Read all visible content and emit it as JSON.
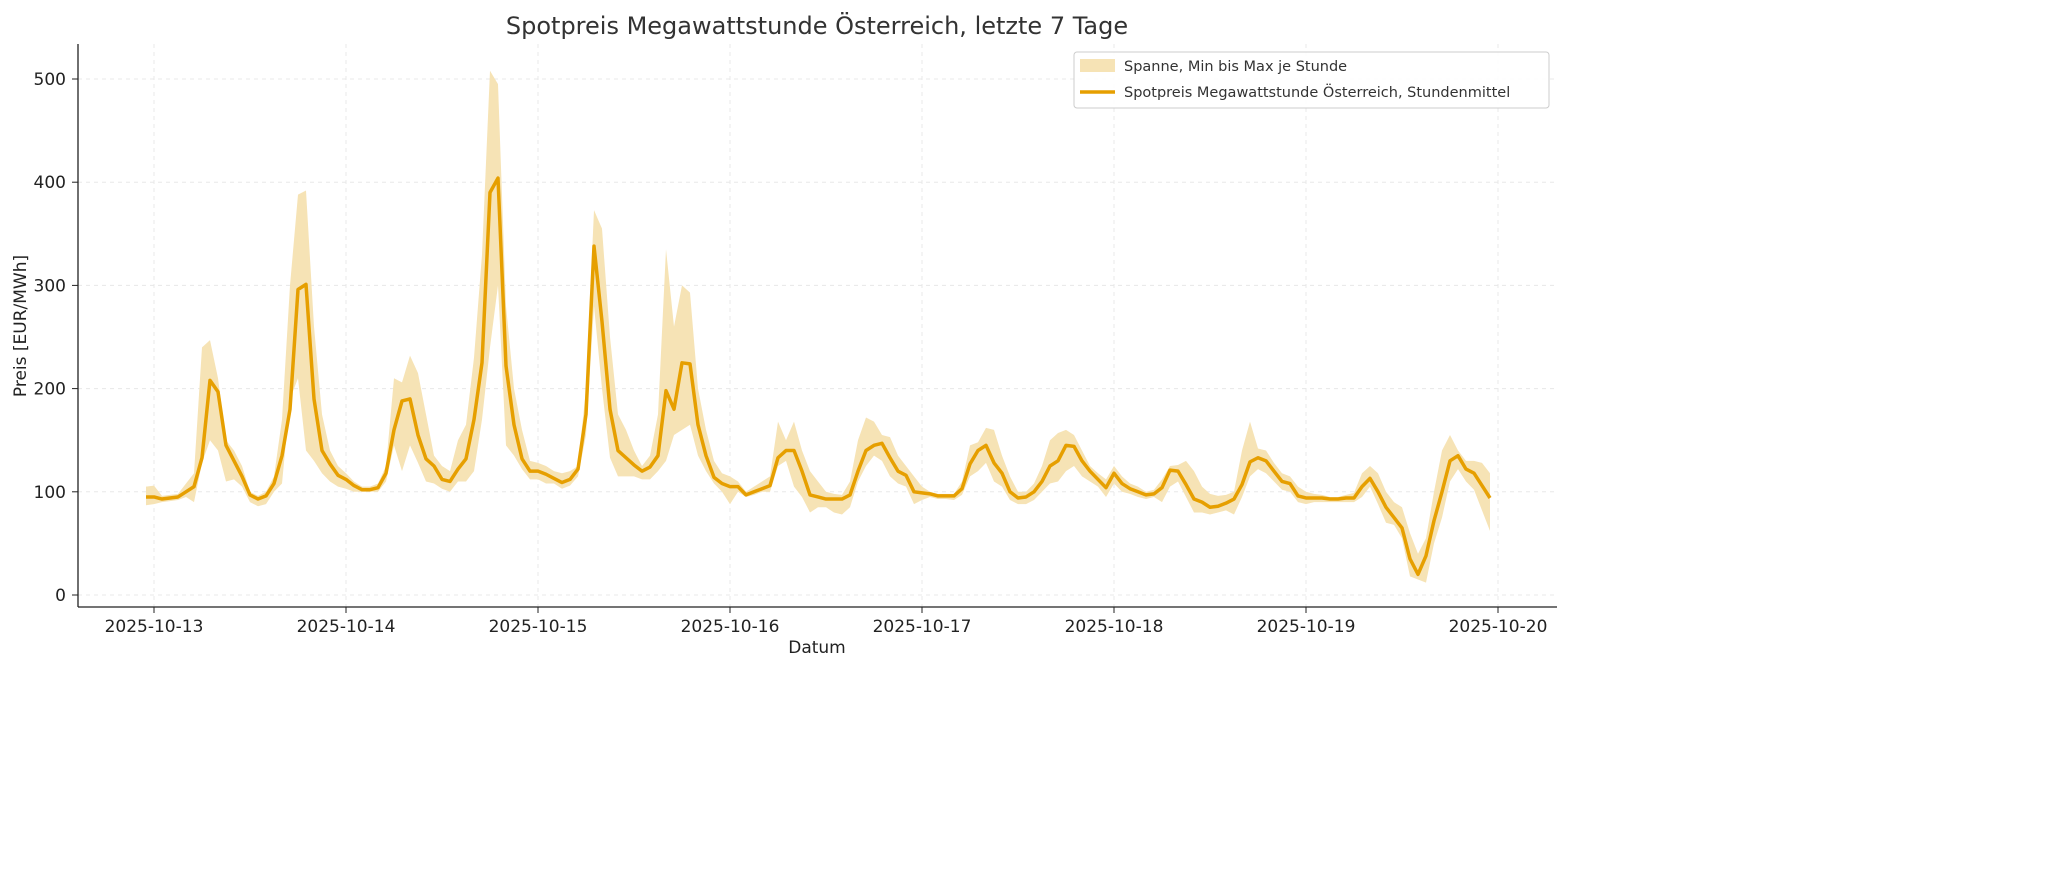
{
  "chart_data": {
    "type": "line",
    "title": "Spotpreis Megawattstunde Österreich, letzte 7 Tage",
    "xlabel": "Datum",
    "ylabel": "Preis [EUR/MWh]",
    "ylim": [
      -12,
      532
    ],
    "yticks": [
      0,
      100,
      200,
      300,
      400,
      500
    ],
    "xticks": [
      "2025-10-13",
      "2025-10-14",
      "2025-10-15",
      "2025-10-16",
      "2025-10-17",
      "2025-10-18",
      "2025-10-19",
      "2025-10-20"
    ],
    "x_start": "2025-10-12 23:00",
    "x_interval": "1h",
    "grid": true,
    "legend_position": "top-right",
    "colors": {
      "line": "#e69f00",
      "band": "#f6e3b5"
    },
    "series": [
      {
        "name": "Spotpreis Megawattstunde Österreich, Stundenmittel",
        "values": [
          95,
          95,
          93,
          94,
          95,
          100,
          105,
          133,
          208,
          197,
          145,
          130,
          115,
          97,
          93,
          96,
          108,
          135,
          180,
          296,
          301,
          190,
          140,
          127,
          116,
          112,
          106,
          102,
          102,
          104,
          118,
          160,
          188,
          190,
          155,
          132,
          125,
          112,
          110,
          122,
          132,
          170,
          225,
          390,
          404,
          222,
          165,
          132,
          120,
          120,
          117,
          113,
          109,
          112,
          122,
          175,
          338,
          265,
          180,
          140,
          133,
          126,
          120,
          124,
          135,
          198,
          180,
          225,
          224,
          165,
          135,
          114,
          108,
          105,
          105,
          97,
          100,
          103,
          106,
          133,
          140,
          140,
          120,
          97,
          95,
          93,
          93,
          93,
          97,
          120,
          140,
          145,
          147,
          133,
          120,
          116,
          100,
          99,
          98,
          96,
          96,
          96,
          103,
          127,
          140,
          145,
          128,
          118,
          100,
          94,
          95,
          100,
          110,
          125,
          130,
          145,
          144,
          130,
          120,
          112,
          104,
          118,
          108,
          103,
          100,
          97,
          98,
          104,
          121,
          120,
          107,
          93,
          90,
          85,
          86,
          89,
          93,
          107,
          129,
          133,
          130,
          120,
          110,
          108,
          96,
          94,
          94,
          94,
          93,
          93,
          94,
          94,
          105,
          113,
          100,
          85,
          75,
          65,
          35,
          20,
          38,
          72,
          100,
          130,
          135,
          122,
          118,
          106,
          94
        ]
      }
    ],
    "band": {
      "name": "Spanne, Min bis Max je Stunde",
      "max": [
        105,
        106,
        96,
        97,
        98,
        108,
        118,
        240,
        247,
        210,
        150,
        140,
        125,
        100,
        96,
        100,
        115,
        170,
        300,
        388,
        392,
        260,
        175,
        140,
        125,
        118,
        110,
        105,
        105,
        108,
        125,
        210,
        206,
        232,
        215,
        175,
        135,
        125,
        120,
        150,
        165,
        230,
        330,
        508,
        495,
        280,
        200,
        160,
        130,
        128,
        125,
        120,
        118,
        120,
        125,
        200,
        373,
        355,
        250,
        175,
        160,
        140,
        125,
        135,
        175,
        335,
        260,
        300,
        293,
        200,
        160,
        130,
        118,
        115,
        110,
        100,
        105,
        110,
        115,
        168,
        150,
        168,
        140,
        120,
        110,
        100,
        98,
        97,
        110,
        150,
        172,
        168,
        155,
        153,
        135,
        125,
        115,
        105,
        100,
        98,
        98,
        98,
        110,
        145,
        148,
        162,
        160,
        135,
        115,
        100,
        100,
        108,
        125,
        150,
        157,
        160,
        155,
        140,
        125,
        118,
        112,
        125,
        115,
        108,
        105,
        100,
        102,
        112,
        125,
        126,
        130,
        120,
        105,
        98,
        96,
        97,
        100,
        140,
        168,
        142,
        140,
        128,
        118,
        115,
        105,
        100,
        98,
        97,
        95,
        95,
        97,
        99,
        118,
        125,
        118,
        100,
        90,
        85,
        60,
        40,
        55,
        100,
        140,
        155,
        140,
        130,
        130,
        128,
        118
      ],
      "min": [
        87,
        88,
        90,
        91,
        92,
        95,
        90,
        128,
        150,
        140,
        110,
        112,
        105,
        90,
        86,
        88,
        100,
        108,
        190,
        210,
        140,
        130,
        118,
        110,
        105,
        103,
        100,
        100,
        100,
        100,
        110,
        145,
        120,
        145,
        128,
        110,
        108,
        103,
        100,
        110,
        110,
        120,
        170,
        240,
        300,
        145,
        135,
        122,
        112,
        112,
        108,
        108,
        103,
        106,
        115,
        155,
        280,
        200,
        133,
        115,
        115,
        115,
        112,
        112,
        120,
        130,
        155,
        160,
        165,
        135,
        120,
        108,
        100,
        88,
        100,
        95,
        97,
        100,
        100,
        125,
        130,
        105,
        95,
        80,
        85,
        85,
        80,
        78,
        85,
        110,
        125,
        135,
        130,
        115,
        108,
        105,
        88,
        92,
        95,
        93,
        93,
        92,
        97,
        115,
        120,
        128,
        110,
        105,
        92,
        88,
        88,
        92,
        100,
        108,
        110,
        120,
        125,
        115,
        110,
        105,
        95,
        108,
        100,
        98,
        95,
        93,
        95,
        90,
        105,
        110,
        95,
        80,
        80,
        78,
        80,
        82,
        78,
        95,
        115,
        122,
        118,
        110,
        102,
        100,
        90,
        88,
        90,
        90,
        90,
        90,
        90,
        90,
        95,
        105,
        88,
        70,
        68,
        55,
        18,
        15,
        12,
        50,
        75,
        110,
        122,
        110,
        102,
        82,
        62
      ]
    }
  }
}
